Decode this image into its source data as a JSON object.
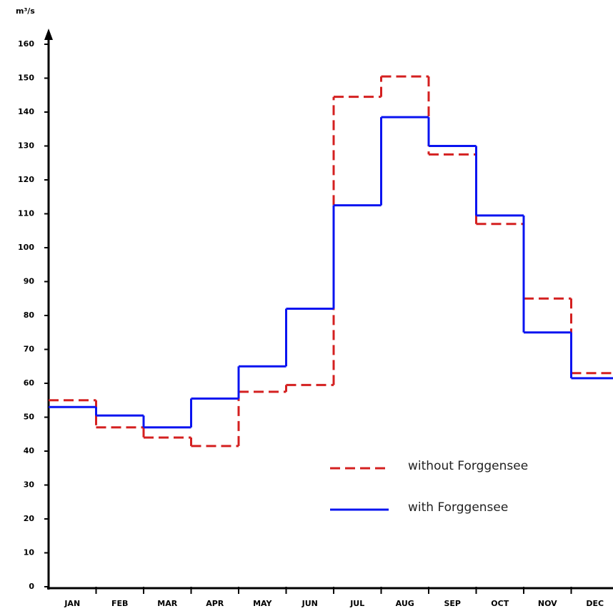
{
  "chart_data": {
    "type": "step",
    "y_label": "m³/s",
    "categories": [
      "JAN",
      "FEB",
      "MAR",
      "APR",
      "MAY",
      "JUN",
      "JUL",
      "AUG",
      "SEP",
      "OCT",
      "NOV",
      "DEC"
    ],
    "series": [
      {
        "name": "without Forggensee",
        "color": "#d42020",
        "dashed": true,
        "values": [
          55,
          47,
          44,
          41.5,
          57.5,
          59.5,
          144.5,
          150.5,
          127.5,
          107,
          85,
          63
        ]
      },
      {
        "name": "with Forggensee",
        "color": "#0a14f0",
        "dashed": false,
        "values": [
          53,
          50.5,
          47,
          55.5,
          65,
          82,
          112.5,
          138.5,
          130,
          109.5,
          75,
          61.5
        ]
      }
    ],
    "ylim": [
      0,
      160
    ],
    "yticks": [
      0,
      10,
      20,
      30,
      40,
      50,
      60,
      70,
      80,
      90,
      100,
      110,
      120,
      130,
      140,
      150,
      160
    ]
  }
}
